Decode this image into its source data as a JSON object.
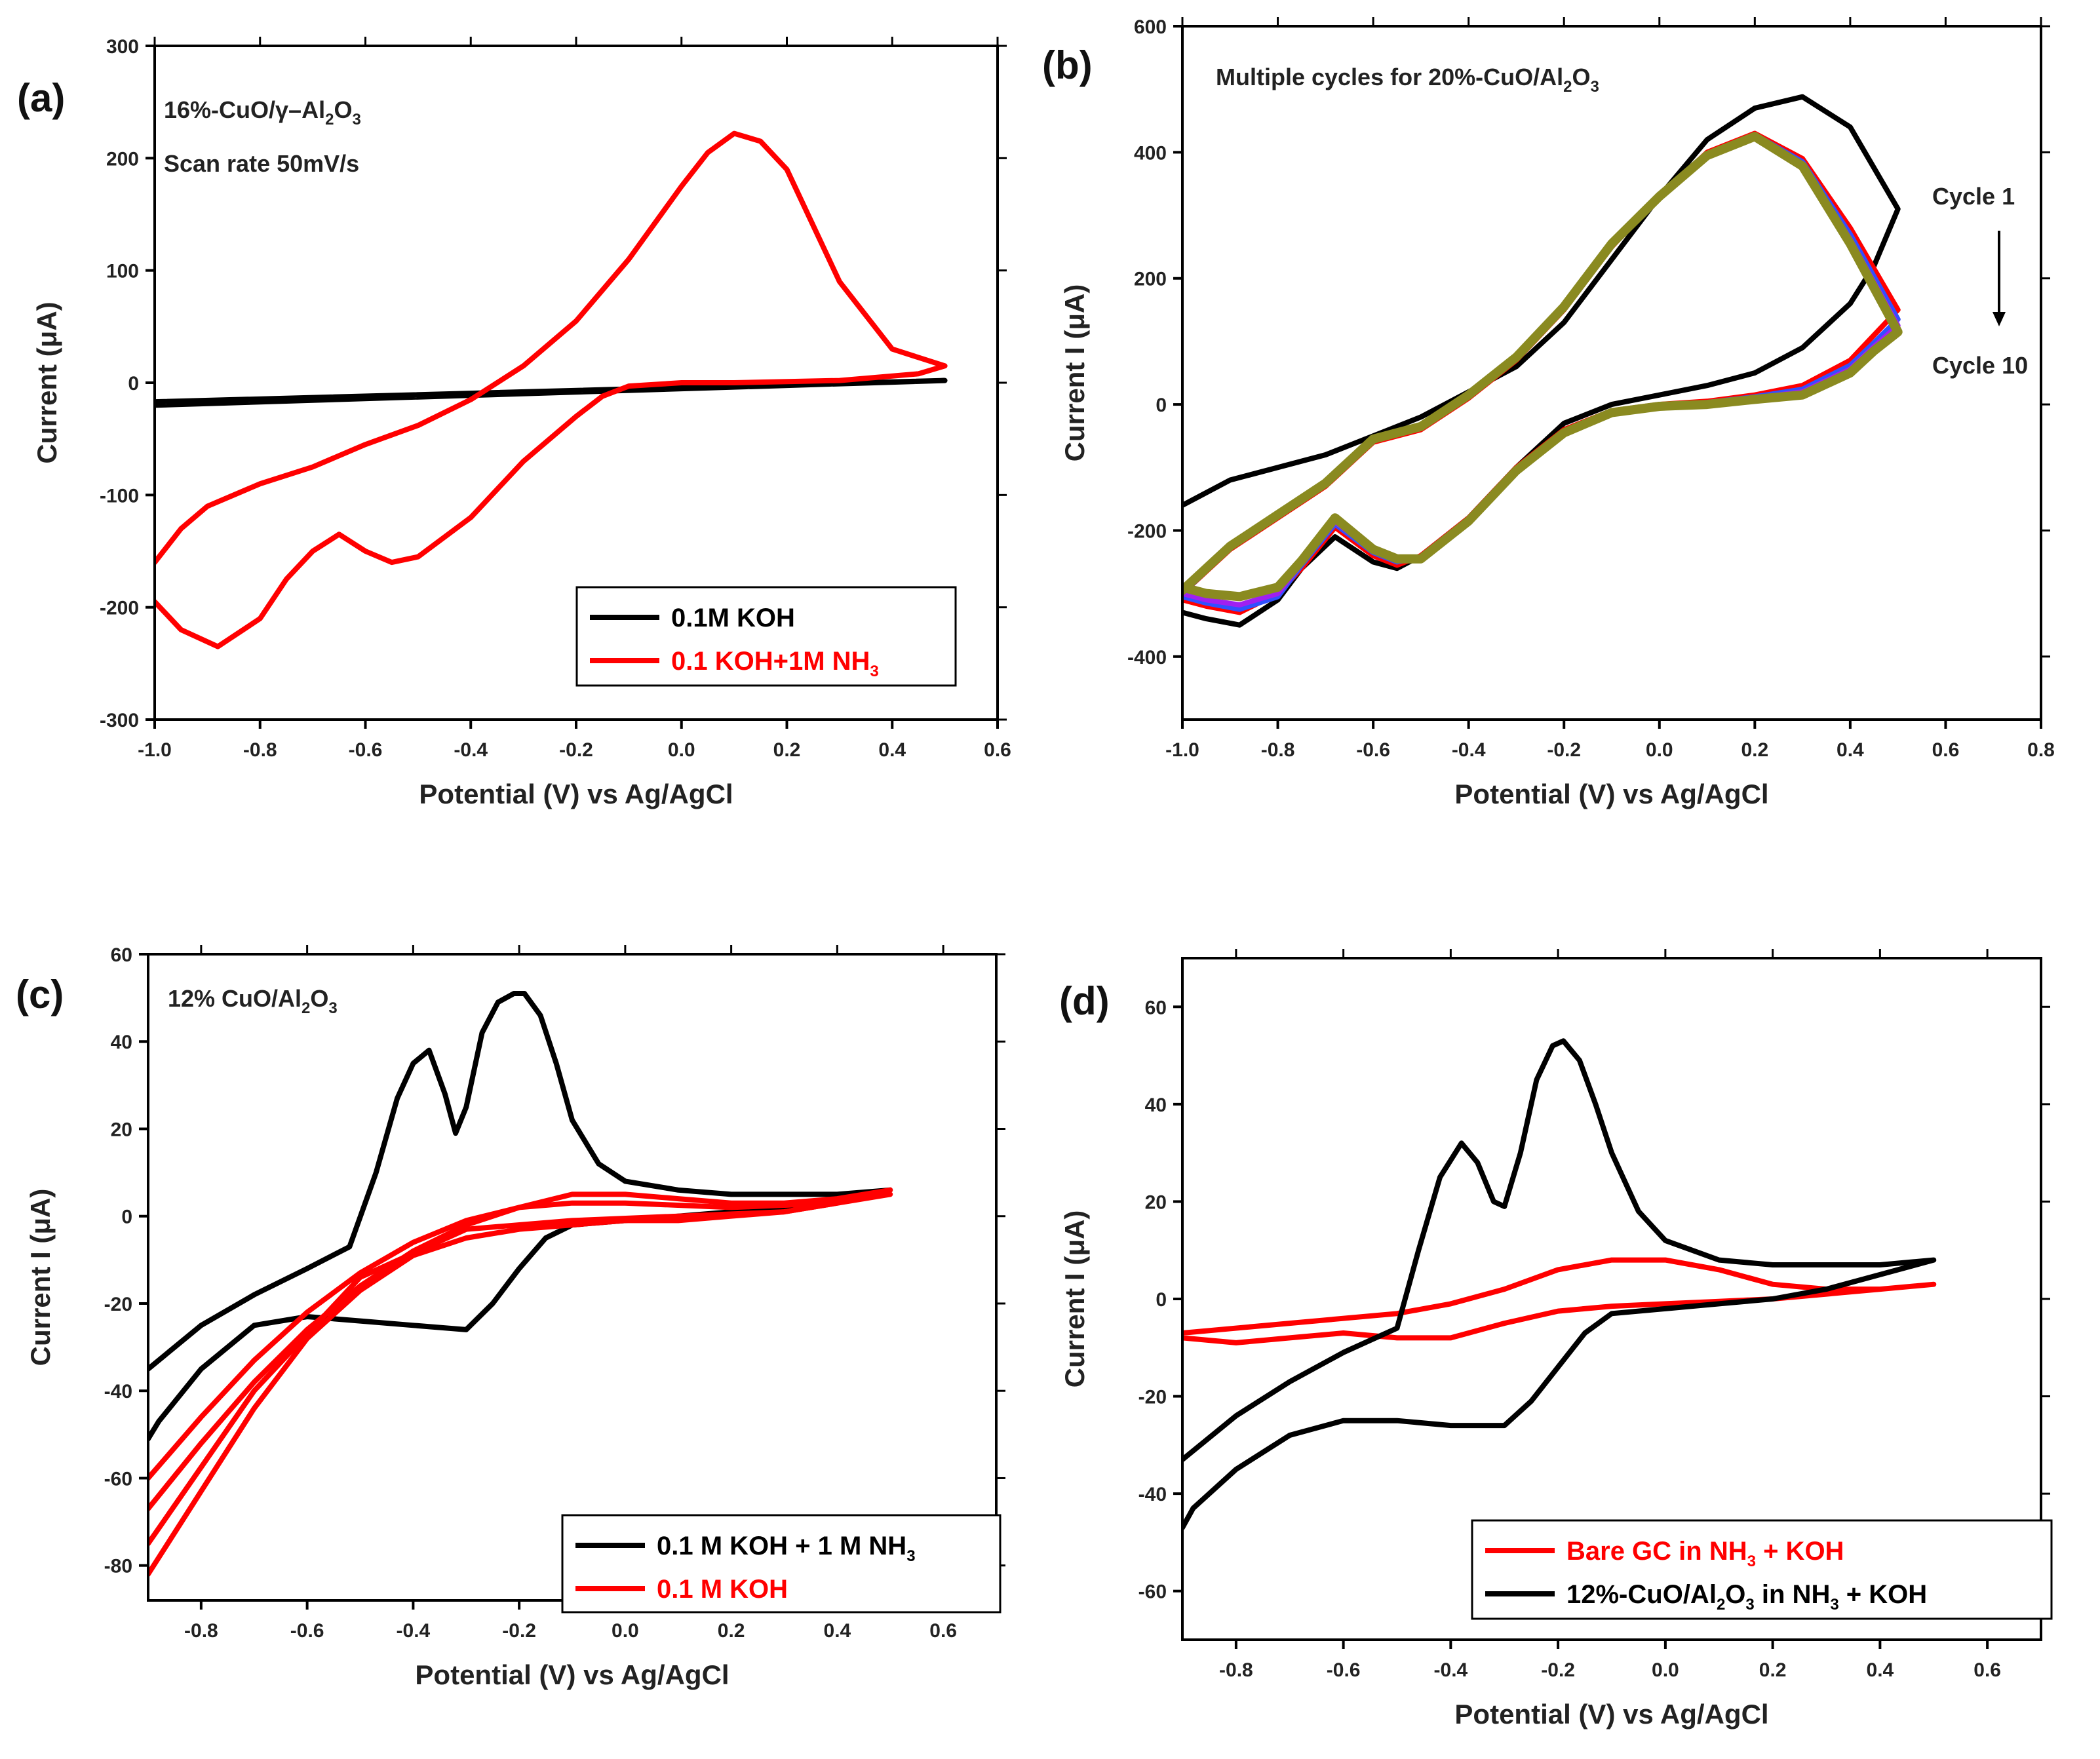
{
  "chart_data": [
    {
      "id": "a",
      "type": "line",
      "panel_label": "(a)",
      "xlabel": "Potential (V) vs Ag/AgCl",
      "ylabel": "Current (μA)",
      "xlim": [
        -1.0,
        0.6
      ],
      "ylim": [
        -300,
        300
      ],
      "xticks": [
        -1.0,
        -0.8,
        -0.6,
        -0.4,
        -0.2,
        0.0,
        0.2,
        0.4,
        0.6
      ],
      "xtick_labels": [
        "-1.0",
        "-0.8",
        "-0.6",
        "-0.4",
        "-0.2",
        "0.0",
        "0.2",
        "0.4",
        "0.6"
      ],
      "yticks": [
        -300,
        -200,
        -100,
        0,
        100,
        200,
        300
      ],
      "ytick_labels": [
        "-300",
        "-200",
        "-100",
        "0",
        "100",
        "200",
        "300"
      ],
      "annotations": [
        {
          "base": "16%-CuO/γ–Al",
          "sub": "2",
          "tail": "O",
          "sub2": "3"
        },
        {
          "base": "Scan rate 50mV/s"
        }
      ],
      "legend": [
        {
          "label": "0.1M KOH",
          "color": "#000000"
        },
        {
          "label": "0.1 KOH+1M NH",
          "sub": "3",
          "color": "#ff0000"
        }
      ],
      "series": [
        {
          "name": "0.1M KOH",
          "color": "#000000",
          "x": [
            -1.0,
            0.5,
            -1.0
          ],
          "y": [
            -20,
            2,
            -17
          ]
        },
        {
          "name": "0.1 KOH+1M NH3",
          "color": "#ff0000",
          "x": [
            -1.0,
            -0.95,
            -0.9,
            -0.8,
            -0.7,
            -0.6,
            -0.5,
            -0.4,
            -0.3,
            -0.2,
            -0.1,
            0.0,
            0.05,
            0.1,
            0.15,
            0.2,
            0.3,
            0.4,
            0.5,
            0.45,
            0.3,
            0.1,
            0.0,
            -0.1,
            -0.15,
            -0.2,
            -0.3,
            -0.4,
            -0.5,
            -0.55,
            -0.6,
            -0.65,
            -0.7,
            -0.75,
            -0.8,
            -0.88,
            -0.95,
            -1.0
          ],
          "y": [
            -160,
            -130,
            -110,
            -90,
            -75,
            -55,
            -38,
            -15,
            15,
            55,
            110,
            175,
            205,
            222,
            215,
            190,
            90,
            30,
            15,
            8,
            2,
            0,
            0,
            -3,
            -12,
            -30,
            -70,
            -120,
            -155,
            -160,
            -150,
            -135,
            -150,
            -175,
            -210,
            -235,
            -220,
            -195
          ]
        }
      ]
    },
    {
      "id": "b",
      "type": "line",
      "panel_label": "(b)",
      "xlabel": "Potential (V) vs Ag/AgCl",
      "ylabel": "Current I (μA)",
      "xlim": [
        -1.0,
        0.8
      ],
      "ylim": [
        -500,
        600
      ],
      "xticks": [
        -1.0,
        -0.8,
        -0.6,
        -0.4,
        -0.2,
        0.0,
        0.2,
        0.4,
        0.6,
        0.8
      ],
      "xtick_labels": [
        "-1.0",
        "-0.8",
        "-0.6",
        "-0.4",
        "-0.2",
        "0.0",
        "0.2",
        "0.4",
        "0.6",
        "0.8"
      ],
      "yticks": [
        -400,
        -200,
        0,
        200,
        400,
        600
      ],
      "ytick_labels": [
        "-400",
        "-200",
        "0",
        "200",
        "400",
        "600"
      ],
      "annotations": [
        {
          "base": "Multiple cycles for 20%-CuO/Al",
          "sub": "2",
          "tail": "O",
          "sub2": "3"
        },
        {
          "base": "Cycle 1"
        },
        {
          "base": "Cycle 10"
        }
      ],
      "series": [
        {
          "name": "Cycle 1",
          "color": "#000000",
          "width": 8,
          "x": [
            -1.0,
            -0.9,
            -0.8,
            -0.7,
            -0.6,
            -0.5,
            -0.4,
            -0.3,
            -0.2,
            -0.1,
            0.0,
            0.1,
            0.2,
            0.3,
            0.4,
            0.5,
            0.45,
            0.4,
            0.3,
            0.2,
            0.1,
            0.0,
            -0.1,
            -0.2,
            -0.3,
            -0.4,
            -0.5,
            -0.55,
            -0.6,
            -0.68,
            -0.75,
            -0.8,
            -0.88,
            -0.95,
            -1.0
          ],
          "y": [
            -160,
            -120,
            -100,
            -80,
            -50,
            -20,
            20,
            60,
            130,
            230,
            330,
            420,
            470,
            488,
            440,
            310,
            220,
            160,
            90,
            50,
            30,
            15,
            0,
            -30,
            -100,
            -180,
            -240,
            -260,
            -250,
            -210,
            -260,
            -310,
            -350,
            -340,
            -330
          ]
        },
        {
          "name": "Cycle 2",
          "color": "#ff0000",
          "width": 8,
          "x": [
            -1.0,
            -0.9,
            -0.8,
            -0.7,
            -0.6,
            -0.5,
            -0.4,
            -0.3,
            -0.2,
            -0.1,
            0.0,
            0.1,
            0.2,
            0.3,
            0.4,
            0.5,
            0.45,
            0.4,
            0.3,
            0.2,
            0.1,
            0.0,
            -0.1,
            -0.2,
            -0.3,
            -0.4,
            -0.5,
            -0.55,
            -0.6,
            -0.68,
            -0.75,
            -0.8,
            -0.88,
            -0.95,
            -1.0
          ],
          "y": [
            -300,
            -230,
            -180,
            -130,
            -60,
            -40,
            10,
            70,
            150,
            250,
            330,
            400,
            430,
            390,
            280,
            150,
            110,
            70,
            30,
            15,
            5,
            0,
            -10,
            -40,
            -100,
            -180,
            -240,
            -255,
            -240,
            -195,
            -260,
            -300,
            -330,
            -320,
            -310
          ]
        },
        {
          "name": "Cycle 5",
          "color": "#3050ff",
          "width": 8,
          "x": [
            -1.0,
            -0.9,
            -0.8,
            -0.7,
            -0.6,
            -0.5,
            -0.4,
            -0.3,
            -0.2,
            -0.1,
            0.0,
            0.1,
            0.2,
            0.3,
            0.4,
            0.5,
            0.45,
            0.4,
            0.3,
            0.2,
            0.1,
            0.0,
            -0.1,
            -0.2,
            -0.3,
            -0.4,
            -0.5,
            -0.55,
            -0.6,
            -0.68,
            -0.75,
            -0.8,
            -0.88,
            -0.95,
            -1.0
          ],
          "y": [
            -300,
            -228,
            -178,
            -128,
            -58,
            -38,
            12,
            72,
            152,
            252,
            330,
            398,
            428,
            385,
            270,
            135,
            98,
            62,
            24,
            12,
            3,
            -1,
            -11,
            -42,
            -102,
            -182,
            -242,
            -250,
            -235,
            -190,
            -255,
            -305,
            -325,
            -315,
            -305
          ]
        },
        {
          "name": "Cycle 8",
          "color": "#a020f0",
          "width": 8,
          "x": [
            -1.0,
            -0.9,
            -0.8,
            -0.7,
            -0.6,
            -0.5,
            -0.4,
            -0.3,
            -0.2,
            -0.1,
            0.0,
            0.1,
            0.2,
            0.3,
            0.4,
            0.5,
            0.45,
            0.4,
            0.3,
            0.2,
            0.1,
            0.0,
            -0.1,
            -0.2,
            -0.3,
            -0.4,
            -0.5,
            -0.55,
            -0.6,
            -0.68,
            -0.75,
            -0.8,
            -0.88,
            -0.95,
            -1.0
          ],
          "y": [
            -298,
            -226,
            -176,
            -126,
            -56,
            -36,
            14,
            74,
            154,
            254,
            330,
            397,
            426,
            382,
            262,
            125,
            92,
            56,
            20,
            10,
            2,
            -2,
            -12,
            -44,
            -104,
            -184,
            -244,
            -248,
            -232,
            -186,
            -252,
            -300,
            -318,
            -310,
            -300
          ]
        },
        {
          "name": "Cycle 10",
          "color": "#8a8a20",
          "width": 14,
          "x": [
            -1.0,
            -0.9,
            -0.8,
            -0.7,
            -0.6,
            -0.5,
            -0.4,
            -0.3,
            -0.2,
            -0.1,
            0.0,
            0.1,
            0.2,
            0.3,
            0.4,
            0.5,
            0.45,
            0.4,
            0.3,
            0.2,
            0.1,
            0.0,
            -0.1,
            -0.2,
            -0.3,
            -0.4,
            -0.5,
            -0.55,
            -0.6,
            -0.68,
            -0.75,
            -0.8,
            -0.88,
            -0.95,
            -1.0
          ],
          "y": [
            -295,
            -225,
            -175,
            -125,
            -55,
            -35,
            15,
            75,
            155,
            255,
            330,
            395,
            425,
            378,
            255,
            115,
            85,
            50,
            15,
            8,
            0,
            -3,
            -13,
            -45,
            -105,
            -185,
            -245,
            -245,
            -230,
            -180,
            -248,
            -290,
            -305,
            -300,
            -290
          ]
        }
      ]
    },
    {
      "id": "c",
      "type": "line",
      "panel_label": "(c)",
      "xlabel": "Potential (V) vs Ag/AgCl",
      "ylabel": "Current I (μA)",
      "xlim": [
        -0.9,
        0.7
      ],
      "ylim": [
        -88,
        60
      ],
      "xticks": [
        -0.8,
        -0.6,
        -0.4,
        -0.2,
        0.0,
        0.2,
        0.4,
        0.6
      ],
      "xtick_labels": [
        "-0.8",
        "-0.6",
        "-0.4",
        "-0.2",
        "0.0",
        "0.2",
        "0.4",
        "0.6"
      ],
      "yticks": [
        -80,
        -60,
        -40,
        -20,
        0,
        20,
        40,
        60
      ],
      "ytick_labels": [
        "-80",
        "-60",
        "-40",
        "-20",
        "0",
        "20",
        "40",
        "60"
      ],
      "annotations": [
        {
          "base": "12% CuO/Al",
          "sub": "2",
          "tail": "O",
          "sub2": "3"
        }
      ],
      "legend": [
        {
          "label": "0.1 M KOH + 1 M NH",
          "sub": "3",
          "color": "#000000"
        },
        {
          "label": "0.1 M KOH",
          "color": "#ff0000"
        }
      ],
      "series": [
        {
          "name": "0.1 M KOH + 1 M NH3",
          "color": "#000000",
          "x": [
            -0.9,
            -0.8,
            -0.7,
            -0.6,
            -0.52,
            -0.47,
            -0.43,
            -0.4,
            -0.37,
            -0.34,
            -0.32,
            -0.3,
            -0.27,
            -0.24,
            -0.21,
            -0.19,
            -0.16,
            -0.13,
            -0.1,
            -0.05,
            0.0,
            0.1,
            0.2,
            0.3,
            0.4,
            0.5,
            0.4,
            0.3,
            0.2,
            0.1,
            0.0,
            -0.1,
            -0.15,
            -0.2,
            -0.25,
            -0.3,
            -0.4,
            -0.5,
            -0.6,
            -0.7,
            -0.8,
            -0.88,
            -0.9
          ],
          "y": [
            -35,
            -25,
            -18,
            -12,
            -7,
            10,
            27,
            35,
            38,
            28,
            19,
            25,
            42,
            49,
            51,
            51,
            46,
            35,
            22,
            12,
            8,
            6,
            5,
            5,
            5,
            6,
            4,
            2,
            1,
            0,
            -1,
            -2,
            -5,
            -12,
            -20,
            -26,
            -25,
            -24,
            -23,
            -25,
            -35,
            -47,
            -51
          ]
        },
        {
          "name": "0.1 M KOH (1)",
          "color": "#ff0000",
          "x": [
            -0.9,
            -0.8,
            -0.7,
            -0.6,
            -0.5,
            -0.4,
            -0.3,
            -0.2,
            -0.1,
            -0.05,
            0.0,
            0.1,
            0.2,
            0.3,
            0.4,
            0.5,
            0.4,
            0.3,
            0.2,
            0.1,
            0.0,
            -0.1,
            -0.2,
            -0.3,
            -0.4,
            -0.5,
            -0.6,
            -0.7,
            -0.8,
            -0.9
          ],
          "y": [
            -67,
            -52,
            -38,
            -26,
            -16,
            -8,
            -2,
            2,
            5,
            5,
            5,
            4,
            3,
            3,
            4,
            6,
            3,
            1,
            0,
            -1,
            -1,
            -2,
            -3,
            -5,
            -9,
            -17,
            -28,
            -44,
            -63,
            -82
          ]
        },
        {
          "name": "0.1 M KOH (2)",
          "color": "#ff0000",
          "x": [
            -0.9,
            -0.8,
            -0.7,
            -0.6,
            -0.5,
            -0.4,
            -0.3,
            -0.2,
            -0.1,
            0.0,
            0.2,
            0.4,
            0.5,
            0.3,
            0.1,
            -0.1,
            -0.3,
            -0.5,
            -0.7,
            -0.9
          ],
          "y": [
            -60,
            -46,
            -33,
            -22,
            -13,
            -6,
            -1,
            2,
            3,
            3,
            2,
            3,
            5,
            1,
            0,
            -1,
            -3,
            -14,
            -40,
            -75
          ]
        }
      ]
    },
    {
      "id": "d",
      "type": "line",
      "panel_label": "(d)",
      "xlabel": "Potential (V) vs Ag/AgCl",
      "ylabel": "Current I (μA)",
      "xlim": [
        -0.9,
        0.7
      ],
      "ylim": [
        -70,
        70
      ],
      "xticks": [
        -0.8,
        -0.6,
        -0.4,
        -0.2,
        0.0,
        0.2,
        0.4,
        0.6
      ],
      "xtick_labels": [
        "-0.8",
        "-0.6",
        "-0.4",
        "-0.2",
        "0.0",
        "0.2",
        "0.4",
        "0.6"
      ],
      "yticks": [
        -60,
        -40,
        -20,
        0,
        20,
        40,
        60
      ],
      "ytick_labels": [
        "-60",
        "-40",
        "-20",
        "0",
        "20",
        "40",
        "60"
      ],
      "legend": [
        {
          "label": "Bare GC in NH",
          "sub": "3",
          "tail": " + KOH",
          "color": "#ff0000"
        },
        {
          "label": "12%-CuO/Al",
          "sub": "2",
          "tail": "O",
          "sub2": "3",
          "tail2": " in NH",
          "sub3": "3",
          "tail3": " + KOH",
          "color": "#000000"
        }
      ],
      "series": [
        {
          "name": "Bare GC in NH3 + KOH",
          "color": "#ff0000",
          "x": [
            -0.9,
            -0.7,
            -0.5,
            -0.4,
            -0.3,
            -0.2,
            -0.1,
            0.0,
            0.1,
            0.2,
            0.3,
            0.4,
            0.5,
            0.4,
            0.3,
            0.2,
            0.1,
            0.0,
            -0.1,
            -0.2,
            -0.3,
            -0.4,
            -0.5,
            -0.6,
            -0.7,
            -0.8,
            -0.9
          ],
          "y": [
            -7,
            -5,
            -3,
            -1,
            2,
            6,
            8,
            8,
            6,
            3,
            2,
            2,
            3,
            2,
            1,
            0,
            -0.5,
            -1,
            -1.5,
            -2.5,
            -5,
            -8,
            -8,
            -7,
            -8,
            -9,
            -8
          ]
        },
        {
          "name": "12%-CuO/Al2O3 in NH3 + KOH",
          "color": "#000000",
          "x": [
            -0.9,
            -0.8,
            -0.7,
            -0.6,
            -0.5,
            -0.46,
            -0.42,
            -0.38,
            -0.35,
            -0.32,
            -0.3,
            -0.27,
            -0.24,
            -0.21,
            -0.19,
            -0.16,
            -0.13,
            -0.1,
            -0.05,
            0.0,
            0.1,
            0.2,
            0.3,
            0.4,
            0.5,
            0.4,
            0.3,
            0.2,
            0.1,
            0.0,
            -0.1,
            -0.15,
            -0.2,
            -0.25,
            -0.3,
            -0.4,
            -0.5,
            -0.6,
            -0.7,
            -0.8,
            -0.88,
            -0.9
          ],
          "y": [
            -33,
            -24,
            -17,
            -11,
            -6,
            10,
            25,
            32,
            28,
            20,
            19,
            30,
            45,
            52,
            53,
            49,
            40,
            30,
            18,
            12,
            8,
            7,
            7,
            7,
            8,
            5,
            2,
            0,
            -1,
            -2,
            -3,
            -7,
            -14,
            -21,
            -26,
            -26,
            -25,
            -25,
            -28,
            -35,
            -43,
            -47
          ]
        }
      ]
    }
  ]
}
